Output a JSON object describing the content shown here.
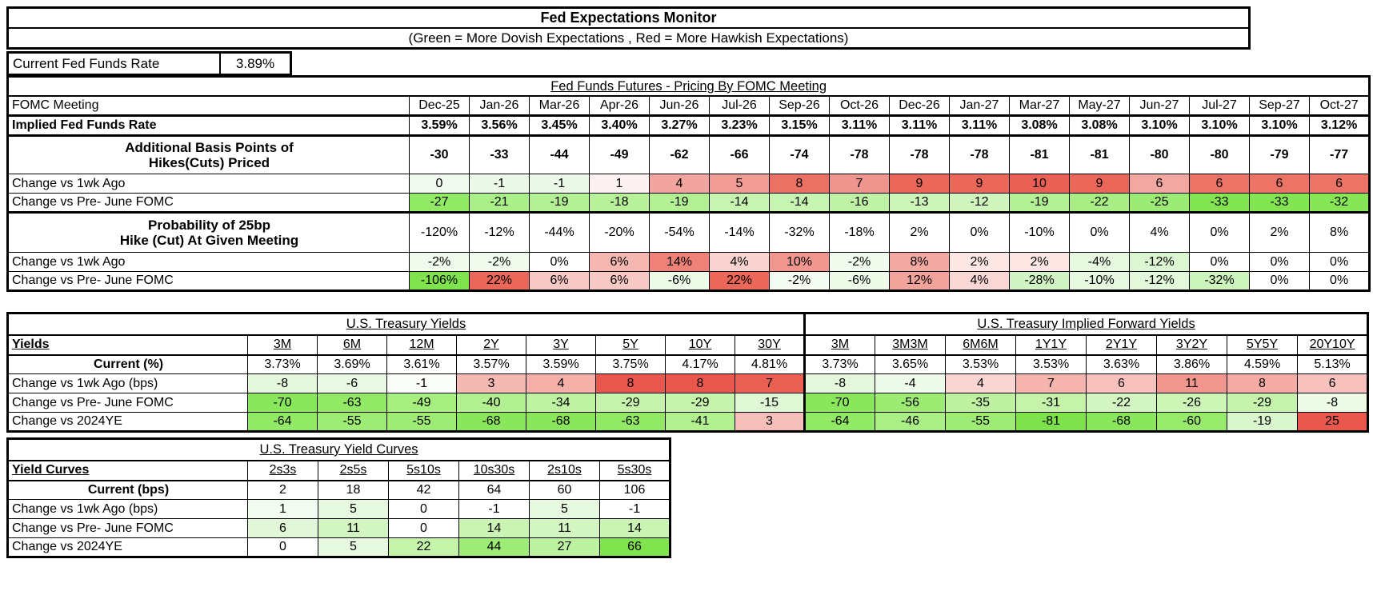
{
  "header": {
    "title": "Fed Expectations Monitor",
    "subtitle": "(Green = More Dovish Expectations , Red = More Hawkish Expectations)"
  },
  "current_fed_funds_rate": {
    "label": "Current Fed Funds Rate",
    "value": "3.89%"
  },
  "legend_colors": {
    "dovish_green": "#7FE34E",
    "hawkish_red": "#E8584C",
    "neutral": "#FFFFFF"
  },
  "chart_data": [
    {
      "type": "table",
      "name": "fed_funds_futures",
      "title": "Fed Funds Futures - Pricing By FOMC Meeting",
      "corner_label": "FOMC Meeting",
      "columns": [
        "Dec-25",
        "Jan-26",
        "Mar-26",
        "Apr-26",
        "Jun-26",
        "Jul-26",
        "Sep-26",
        "Oct-26",
        "Dec-26",
        "Jan-27",
        "Mar-27",
        "May-27",
        "Jun-27",
        "Jul-27",
        "Sep-27",
        "Oct-27"
      ],
      "rows": [
        {
          "label": "Implied Fed Funds Rate",
          "values": [
            "3.59%",
            "3.56%",
            "3.45%",
            "3.40%",
            "3.27%",
            "3.23%",
            "3.15%",
            "3.11%",
            "3.11%",
            "3.11%",
            "3.08%",
            "3.08%",
            "3.10%",
            "3.10%",
            "3.10%",
            "3.12%"
          ]
        },
        {
          "label": "Additional Basis Points of\nHikes(Cuts) Priced",
          "values": [
            "-30",
            "-33",
            "-44",
            "-49",
            "-62",
            "-66",
            "-74",
            "-78",
            "-78",
            "-78",
            "-81",
            "-81",
            "-80",
            "-80",
            "-79",
            "-77"
          ]
        },
        {
          "label": "Change vs 1wk Ago",
          "values": [
            "0",
            "-1",
            "-1",
            "1",
            "4",
            "5",
            "8",
            "7",
            "9",
            "9",
            "10",
            "9",
            "6",
            "6",
            "6",
            "6"
          ],
          "cell_colors": [
            "#F1FAEF",
            "#ECF9E8",
            "#ECF9E8",
            "#FDF2F1",
            "#F2A59E",
            "#F09B93",
            "#EB7164",
            "#F0958D",
            "#EA675A",
            "#EA675A",
            "#E96154",
            "#EA675A",
            "#F2A8A1",
            "#EC7467",
            "#EC7467",
            "#EC7467"
          ]
        },
        {
          "label": "Change vs Pre- June FOMC",
          "values": [
            "-27",
            "-21",
            "-19",
            "-18",
            "-19",
            "-14",
            "-14",
            "-16",
            "-13",
            "-12",
            "-19",
            "-22",
            "-25",
            "-33",
            "-33",
            "-32"
          ],
          "cell_colors": [
            "#92E966",
            "#ABEF89",
            "#B4F094",
            "#B8F199",
            "#B4F094",
            "#C8F4B1",
            "#C8F4B1",
            "#C0F2A6",
            "#CCF5B8",
            "#D0F5BD",
            "#B4F094",
            "#A8EE84",
            "#9CEB74",
            "#83E551",
            "#83E551",
            "#86E655"
          ]
        },
        {
          "label": "Probability of 25bp\nHike (Cut) At Given Meeting",
          "values": [
            "-120%",
            "-12%",
            "-44%",
            "-20%",
            "-54%",
            "-14%",
            "-32%",
            "-18%",
            "2%",
            "0%",
            "-10%",
            "0%",
            "4%",
            "0%",
            "2%",
            "8%"
          ]
        },
        {
          "label": "Change vs 1wk Ago",
          "values": [
            "-2%",
            "-2%",
            "0%",
            "6%",
            "14%",
            "4%",
            "10%",
            "-2%",
            "8%",
            "2%",
            "2%",
            "-4%",
            "-12%",
            "0%",
            "0%",
            "0%"
          ],
          "cell_colors": [
            "#F0FBED",
            "#F0FBED",
            "#FFFFFF",
            "#F5B7B1",
            "#EE8279",
            "#F9D3D0",
            "#F0968E",
            "#F0FBED",
            "#F3A9A2",
            "#FCE7E5",
            "#FCE7E5",
            "#E7F8E1",
            "#DCF6D2",
            "#FFFFFF",
            "#FFFFFF",
            "#FFFFFF"
          ]
        },
        {
          "label": "Change vs Pre- June FOMC",
          "values": [
            "-106%",
            "22%",
            "6%",
            "6%",
            "-6%",
            "22%",
            "-2%",
            "-6%",
            "12%",
            "4%",
            "-28%",
            "-10%",
            "-12%",
            "-32%",
            "0%",
            "0%"
          ],
          "cell_colors": [
            "#7FE34E",
            "#EA675A",
            "#F7C9C5",
            "#F7C9C5",
            "#EDFAE8",
            "#EA675A",
            "#F4FCF2",
            "#EDFAE8",
            "#F2A39C",
            "#F9D7D4",
            "#D2F4C4",
            "#E6F8DF",
            "#E3F7DA",
            "#CDF3BD",
            "#FFFFFF",
            "#FFFFFF"
          ]
        }
      ]
    },
    {
      "type": "table",
      "name": "treasury_yields",
      "titles": [
        "U.S. Treasury Yields",
        "U.S. Treasury Implied Forward Yields"
      ],
      "corner_label": "Yields",
      "columns": [
        "3M",
        "6M",
        "12M",
        "2Y",
        "3Y",
        "5Y",
        "10Y",
        "30Y",
        "3M",
        "3M3M",
        "6M6M",
        "1Y1Y",
        "2Y1Y",
        "3Y2Y",
        "5Y5Y",
        "20Y10Y"
      ],
      "rows": [
        {
          "label": "Current (%)",
          "values": [
            "3.73%",
            "3.69%",
            "3.61%",
            "3.57%",
            "3.59%",
            "3.75%",
            "4.17%",
            "4.81%",
            "3.73%",
            "3.65%",
            "3.53%",
            "3.53%",
            "3.63%",
            "3.86%",
            "4.59%",
            "5.13%"
          ]
        },
        {
          "label": "Change vs 1wk Ago (bps)",
          "values": [
            "-8",
            "-6",
            "-1",
            "3",
            "4",
            "8",
            "8",
            "7",
            "-8",
            "-4",
            "4",
            "7",
            "6",
            "11",
            "8",
            "6"
          ],
          "cell_colors": [
            "#E4F7DC",
            "#E9F9E3",
            "#FAFDF8",
            "#F5B9B3",
            "#F3AFA8",
            "#E8584C",
            "#E8584C",
            "#EA6154",
            "#E4F7DC",
            "#EEFAEA",
            "#F9D6D2",
            "#F5B5AE",
            "#F7C2BD",
            "#F0968E",
            "#F3ABA4",
            "#F7C2BD"
          ]
        },
        {
          "label": "Change vs Pre- June FOMC",
          "values": [
            "-70",
            "-63",
            "-49",
            "-40",
            "-34",
            "-29",
            "-29",
            "-15",
            "-70",
            "-56",
            "-35",
            "-31",
            "-22",
            "-26",
            "-29",
            "-8"
          ],
          "cell_colors": [
            "#88E75A",
            "#92E966",
            "#A6EE80",
            "#B3F091",
            "#BFF2A2",
            "#C6F4AC",
            "#C6F4AC",
            "#E0F7D5",
            "#88E75A",
            "#9CEB73",
            "#BEF2A1",
            "#C4F3A9",
            "#D3F5C1",
            "#CCF5B6",
            "#C6F4AC",
            "#ECFAE6"
          ]
        },
        {
          "label": "Change vs 2024YE",
          "values": [
            "-64",
            "-55",
            "-55",
            "-68",
            "-68",
            "-63",
            "-41",
            "3",
            "-64",
            "-46",
            "-55",
            "-81",
            "-68",
            "-60",
            "-19",
            "25"
          ],
          "cell_colors": [
            "#91E965",
            "#9EEC76",
            "#9EEC76",
            "#8AE75D",
            "#8AE75D",
            "#92E966",
            "#B2F090",
            "#F5BEB9",
            "#91E965",
            "#AAEF86",
            "#9EEC76",
            "#7DE24C",
            "#8AE75D",
            "#97EA6C",
            "#DAF6CE",
            "#E8584C"
          ]
        }
      ]
    },
    {
      "type": "table",
      "name": "yield_curves",
      "title": "U.S. Treasury Yield Curves",
      "corner_label": "Yield Curves",
      "columns": [
        "2s3s",
        "2s5s",
        "5s10s",
        "10s30s",
        "2s10s",
        "5s30s"
      ],
      "rows": [
        {
          "label": "Current (bps)",
          "values": [
            "2",
            "18",
            "42",
            "64",
            "60",
            "106"
          ]
        },
        {
          "label": "Change vs 1wk Ago (bps)",
          "values": [
            "1",
            "5",
            "0",
            "-1",
            "5",
            "-1"
          ],
          "cell_colors": [
            "#F3FCF0",
            "#E6F8DF",
            "#FFFFFF",
            "#FFFFFF",
            "#E6F8DF",
            "#FFFFFF"
          ]
        },
        {
          "label": "Change vs Pre- June FOMC",
          "values": [
            "6",
            "11",
            "0",
            "14",
            "11",
            "14"
          ],
          "cell_colors": [
            "#E2F7D8",
            "#D3F5C2",
            "#FFFFFF",
            "#CAF4B4",
            "#D3F5C2",
            "#CAF4B4"
          ]
        },
        {
          "label": "Change vs 2024YE",
          "values": [
            "0",
            "5",
            "22",
            "44",
            "27",
            "66"
          ],
          "cell_colors": [
            "#FFFFFF",
            "#E6F8DF",
            "#C4F3AA",
            "#9DEC75",
            "#BDF2A0",
            "#7FE34E"
          ]
        }
      ]
    }
  ]
}
